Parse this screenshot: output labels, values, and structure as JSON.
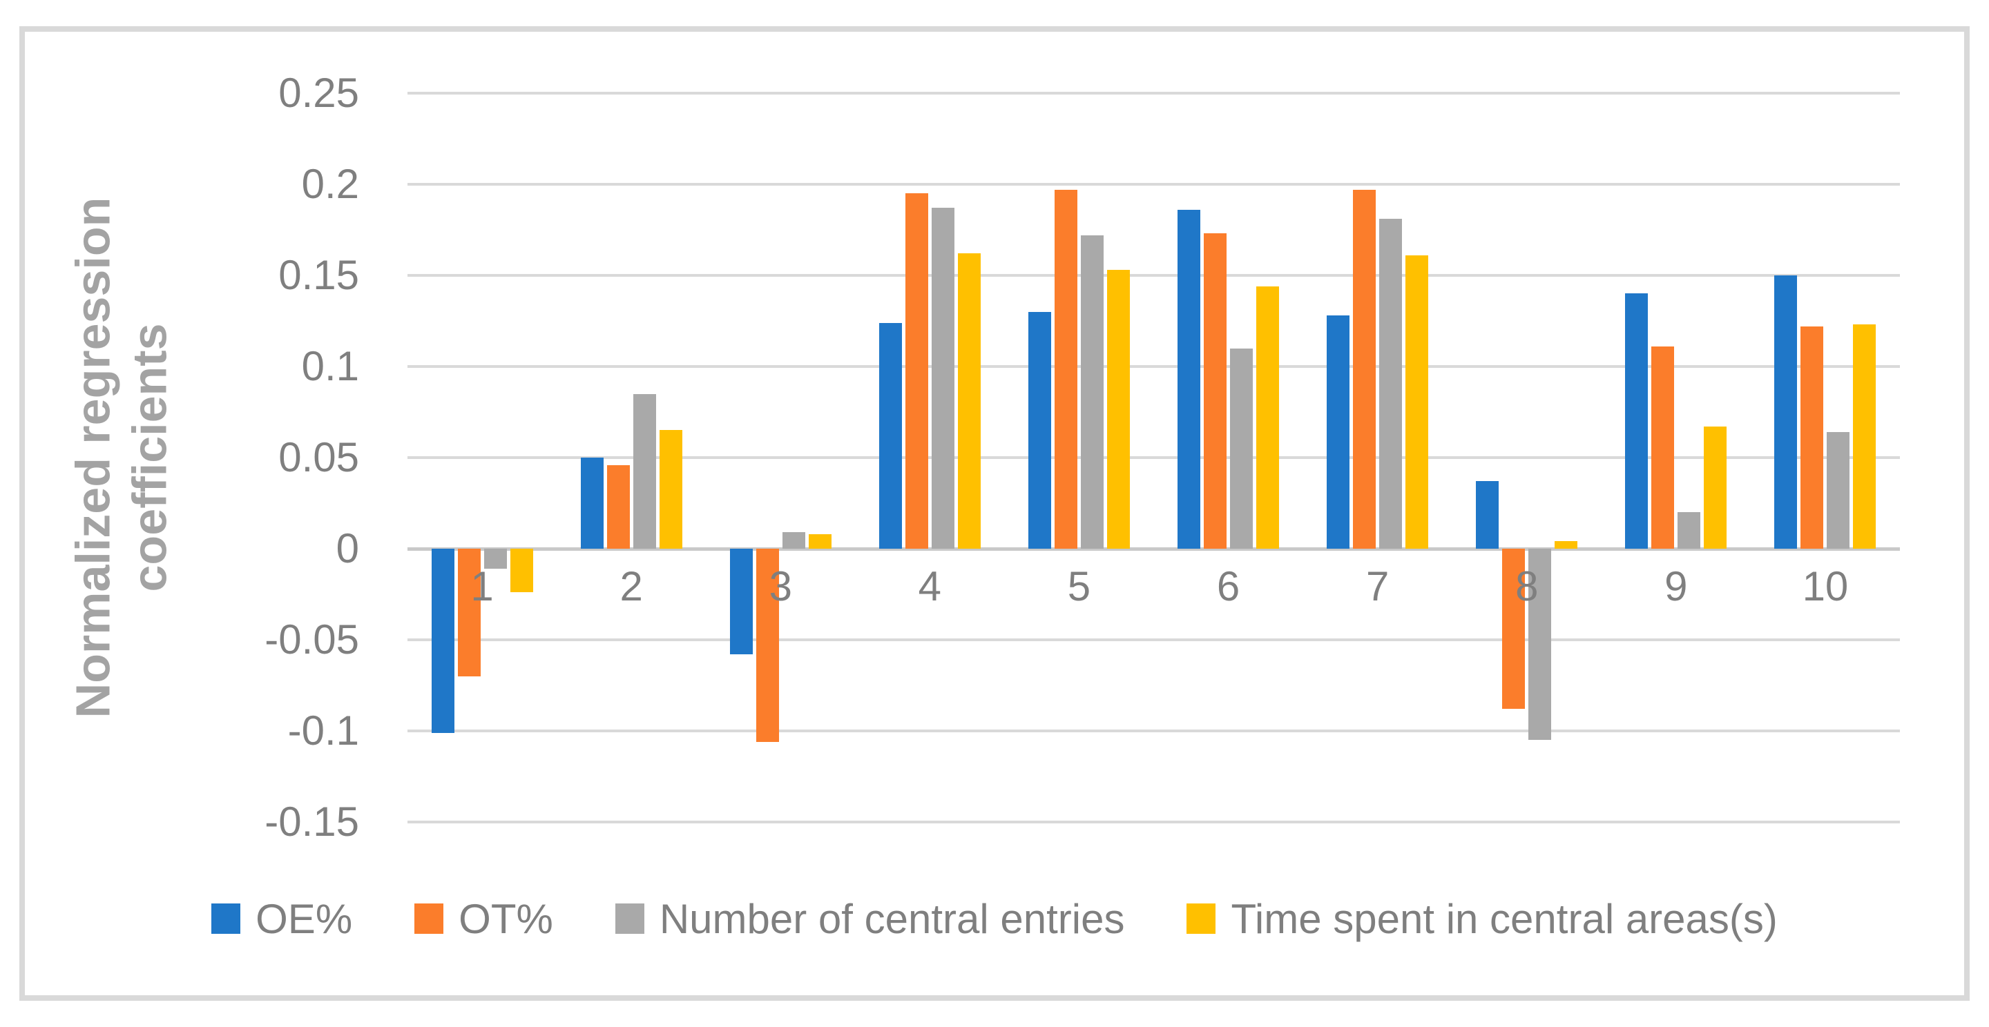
{
  "chart_data": {
    "type": "bar",
    "title": "",
    "ylabel": "Normalized regression coefficients",
    "ylabel_lines": [
      "Normalized regression",
      "coefficients"
    ],
    "xlabel": "",
    "categories": [
      "1",
      "2",
      "3",
      "4",
      "5",
      "6",
      "7",
      "8",
      "9",
      "10"
    ],
    "series": [
      {
        "name": "OE%",
        "color": "#1F77C8",
        "values": [
          -0.101,
          0.05,
          -0.058,
          0.124,
          0.13,
          0.186,
          0.128,
          0.037,
          0.14,
          0.15
        ]
      },
      {
        "name": "OT%",
        "color": "#FB7D2B",
        "values": [
          -0.07,
          0.046,
          -0.106,
          0.195,
          0.197,
          0.173,
          0.197,
          -0.088,
          0.111,
          0.122
        ]
      },
      {
        "name": "Number of central entries",
        "color": "#A9A9A9",
        "values": [
          -0.011,
          0.085,
          0.009,
          0.187,
          0.172,
          0.11,
          0.181,
          -0.105,
          0.02,
          0.064
        ]
      },
      {
        "name": "Time spent in central areas(s)",
        "color": "#FFC000",
        "values": [
          -0.024,
          0.065,
          0.008,
          0.162,
          0.153,
          0.144,
          0.161,
          0.004,
          0.067,
          0.123
        ]
      }
    ],
    "ylim": [
      -0.15,
      0.25
    ],
    "ytick_step": 0.05,
    "yticks": [
      "0.25",
      "0.2",
      "0.15",
      "0.1",
      "0.05",
      "0",
      "-0.05",
      "-0.1",
      "-0.15"
    ],
    "grid": true,
    "legend_position": "bottom"
  },
  "style_colors": {
    "frame_border": "#D9D9D9",
    "gridline": "#D9D9D9",
    "zero_line": "#C9C9C9",
    "tick_text": "#7F7F7F",
    "axis_title_text": "#A3A3A3",
    "background": "#FFFFFF"
  }
}
